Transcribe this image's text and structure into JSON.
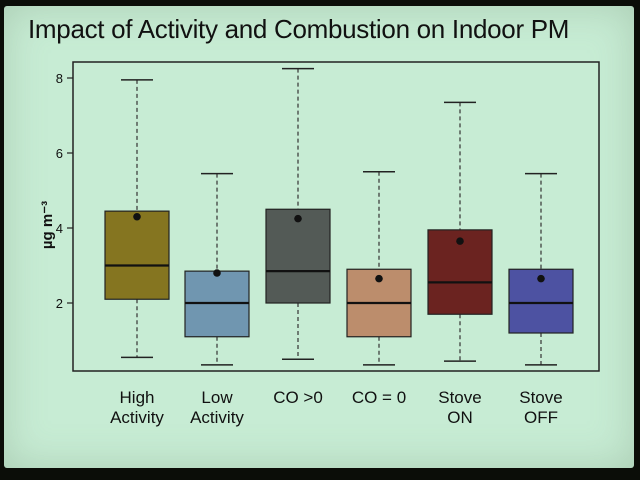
{
  "slide": {
    "title": "Impact of Activity and Combustion on Indoor PM"
  },
  "chart_data": {
    "type": "boxplot",
    "title": "Impact of Activity and Combustion on Indoor PM",
    "ylabel": "µg m⁻³",
    "ylim": [
      0,
      8.4
    ],
    "yticks": [
      2,
      4,
      6,
      8
    ],
    "categories": [
      {
        "label": [
          "High",
          "Activity"
        ],
        "color": "#857520",
        "whisker_low": 0.55,
        "q1": 2.1,
        "median": 3.0,
        "q3": 4.45,
        "whisker_high": 7.95,
        "mean": 4.3
      },
      {
        "label": [
          "Low",
          "Activity"
        ],
        "color": "#7096b0",
        "whisker_low": 0.35,
        "q1": 1.1,
        "median": 2.0,
        "q3": 2.85,
        "whisker_high": 5.45,
        "mean": 2.8
      },
      {
        "label": [
          "CO >0"
        ],
        "color": "#535a56",
        "whisker_low": 0.5,
        "q1": 2.0,
        "median": 2.85,
        "q3": 4.5,
        "whisker_high": 8.25,
        "mean": 4.25
      },
      {
        "label": [
          "CO = 0"
        ],
        "color": "#bc8d6c",
        "whisker_low": 0.35,
        "q1": 1.1,
        "median": 2.0,
        "q3": 2.9,
        "whisker_high": 5.5,
        "mean": 2.65
      },
      {
        "label": [
          "Stove",
          "ON"
        ],
        "color": "#6b2320",
        "whisker_low": 0.45,
        "q1": 1.7,
        "median": 2.55,
        "q3": 3.95,
        "whisker_high": 7.35,
        "mean": 3.65
      },
      {
        "label": [
          "Stove",
          "OFF"
        ],
        "color": "#4d52a2",
        "whisker_low": 0.35,
        "q1": 1.2,
        "median": 2.0,
        "q3": 2.9,
        "whisker_high": 5.45,
        "mean": 2.65
      }
    ]
  }
}
